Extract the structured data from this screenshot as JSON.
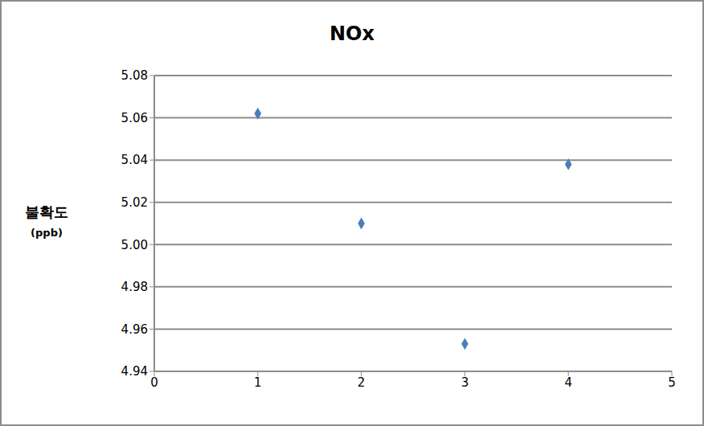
{
  "chart_data": {
    "type": "scatter",
    "title": "NOx",
    "ylabel": [
      "불확도",
      "(ppb)"
    ],
    "x": [
      1,
      2,
      3,
      4
    ],
    "values": [
      5.062,
      5.01,
      4.953,
      5.038
    ],
    "color": "#4a7ebb",
    "marker": "diamond",
    "xlim": [
      0,
      5
    ],
    "xticks": [
      0,
      1,
      2,
      3,
      4,
      5
    ],
    "ylim": [
      4.94,
      5.08
    ],
    "yticks": [
      4.94,
      4.96,
      4.98,
      {
        "value": 5,
        "label": "5.00"
      },
      5.02,
      5.04,
      5.06,
      5.08
    ],
    "grid": true
  }
}
